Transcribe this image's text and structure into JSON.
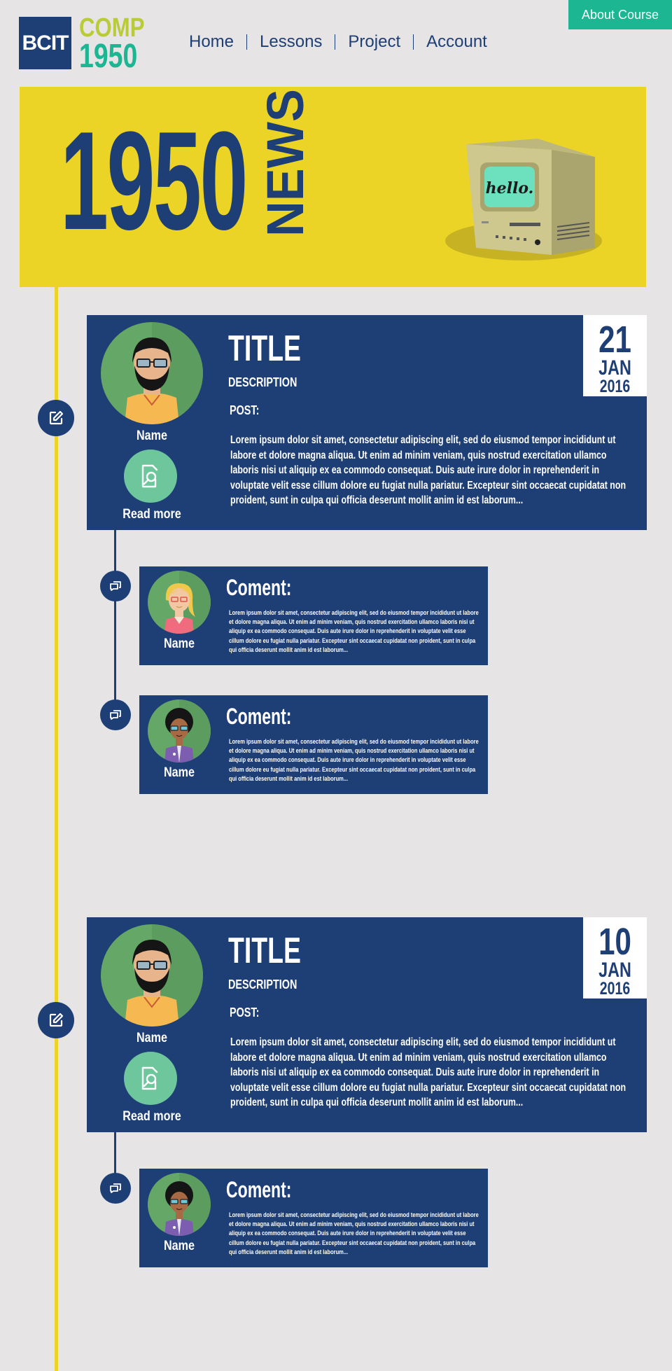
{
  "header": {
    "logo": {
      "bcit": "BCIT",
      "comp": "COMP",
      "number": "1950"
    },
    "nav": [
      {
        "label": "Home"
      },
      {
        "label": "Lessons"
      },
      {
        "label": "Project"
      },
      {
        "label": "Account"
      }
    ],
    "about_button": "About Course"
  },
  "hero": {
    "number": "1950",
    "word": "NEWS",
    "screen_text": "hello."
  },
  "colors": {
    "navy": "#1e3e76",
    "yellow": "#ecd426",
    "teal": "#1db693",
    "lime": "#b9cc37",
    "avatar_green": "#64a766",
    "readmore_green": "#6ec69c",
    "background": "#e6e4e5"
  },
  "icons": {
    "post_marker": "edit-icon",
    "comment_marker": "chat-bubble-icon",
    "read_more": "document-search-icon"
  },
  "posts": [
    {
      "author": "Name",
      "read_more": "Read more",
      "title": "TITLE",
      "description": "DESCRIPTION",
      "post_label": "POST:",
      "body": "Lorem ipsum dolor sit amet, consectetur adipiscing elit, sed do eiusmod tempor incididunt ut labore et dolore magna aliqua. Ut enim ad minim veniam, quis nostrud exercitation ullamco laboris nisi ut aliquip ex ea commodo consequat. Duis aute irure dolor in reprehenderit in voluptate velit esse cillum dolore eu fugiat nulla pariatur. Excepteur sint occaecat cupidatat non proident, sunt in culpa qui officia deserunt mollit anim id est laborum...",
      "date": {
        "day": "21",
        "month": "JAN",
        "year": "2016"
      },
      "comments": [
        {
          "author": "Name",
          "label": "Coment:",
          "body": "Lorem ipsum dolor sit amet, consectetur adipiscing elit, sed do eiusmod tempor incididunt ut labore et dolore magna aliqua. Ut enim ad minim veniam, quis nostrud exercitation ullamco laboris nisi ut aliquip ex ea commodo consequat. Duis aute irure dolor in reprehenderit in voluptate velit esse cillum dolore eu fugiat nulla pariatur. Excepteur sint occaecat cupidatat non proident, sunt in culpa qui officia deserunt mollit anim id est laborum..."
        },
        {
          "author": "Name",
          "label": "Coment:",
          "body": "Lorem ipsum dolor sit amet, consectetur adipiscing elit, sed do eiusmod tempor incididunt ut labore et dolore magna aliqua. Ut enim ad minim veniam, quis nostrud exercitation ullamco laboris nisi ut aliquip ex ea commodo consequat. Duis aute irure dolor in reprehenderit in voluptate velit esse cillum dolore eu fugiat nulla pariatur. Excepteur sint occaecat cupidatat non proident, sunt in culpa qui officia deserunt mollit anim id est laborum..."
        }
      ]
    },
    {
      "author": "Name",
      "read_more": "Read more",
      "title": "TITLE",
      "description": "DESCRIPTION",
      "post_label": "POST:",
      "body": "Lorem ipsum dolor sit amet, consectetur adipiscing elit, sed do eiusmod tempor incididunt ut labore et dolore magna aliqua. Ut enim ad minim veniam, quis nostrud exercitation ullamco laboris nisi ut aliquip ex ea commodo consequat. Duis aute irure dolor in reprehenderit in voluptate velit esse cillum dolore eu fugiat nulla pariatur. Excepteur sint occaecat cupidatat non proident, sunt in culpa qui officia deserunt mollit anim id est laborum...",
      "date": {
        "day": "10",
        "month": "JAN",
        "year": "2016"
      },
      "comments": [
        {
          "author": "Name",
          "label": "Coment:",
          "body": "Lorem ipsum dolor sit amet, consectetur adipiscing elit, sed do eiusmod tempor incididunt ut labore et dolore magna aliqua. Ut enim ad minim veniam, quis nostrud exercitation ullamco laboris nisi ut aliquip ex ea commodo consequat. Duis aute irure dolor in reprehenderit in voluptate velit esse cillum dolore eu fugiat nulla pariatur. Excepteur sint occaecat cupidatat non proident, sunt in culpa qui officia deserunt mollit anim id est laborum..."
        }
      ]
    }
  ]
}
